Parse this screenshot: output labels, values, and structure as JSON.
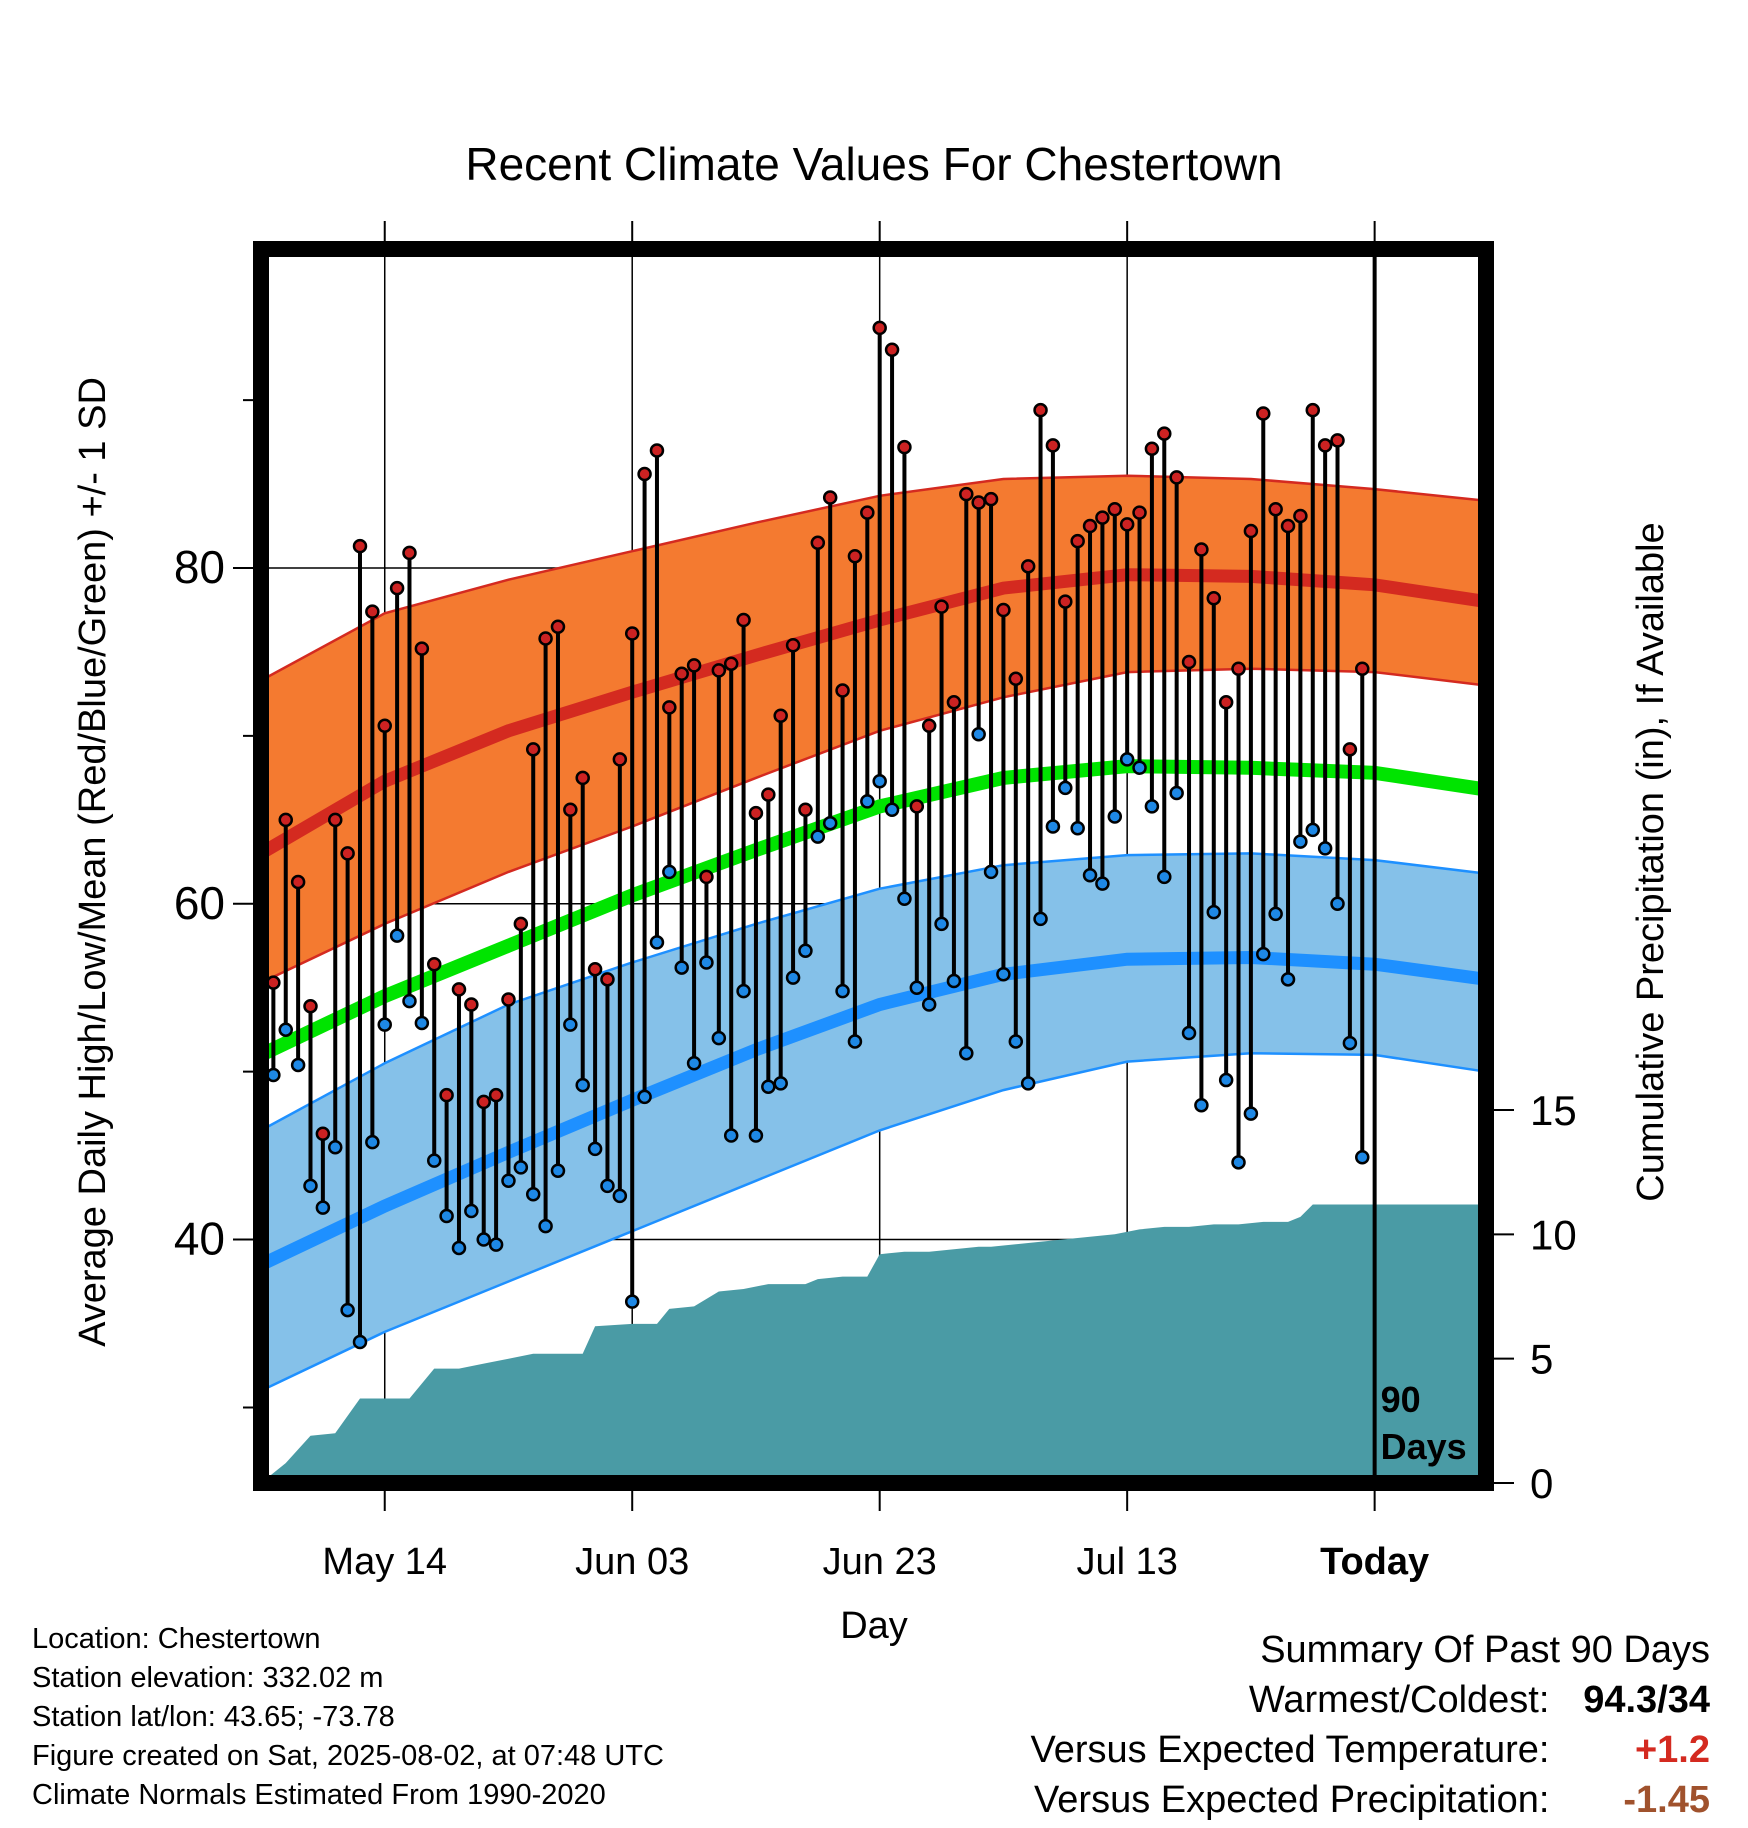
{
  "chart_data": {
    "type": "line",
    "title": "Recent Climate Values For Chestertown",
    "xlabel": "Day",
    "ylabel_left": "Average Daily High/Low/Mean (Red/Blue/Green) +/- 1 SD",
    "ylabel_right": "Cumulative Precipitation (in), If Available",
    "xlim_days": [
      0,
      99
    ],
    "today_day": 90,
    "today_annotation": [
      "90",
      "Days"
    ],
    "x_ticks": [
      {
        "day": 10,
        "label": "May 14"
      },
      {
        "day": 30,
        "label": "Jun 03"
      },
      {
        "day": 50,
        "label": "Jun 23"
      },
      {
        "day": 70,
        "label": "Jul 13"
      },
      {
        "day": 90,
        "label": "Today"
      }
    ],
    "y_left_ticks": [
      40,
      60,
      80
    ],
    "y_left_range": [
      25.5,
      99
    ],
    "y_right_ticks": [
      0,
      5,
      10,
      15
    ],
    "y_right_range": [
      0,
      15
    ],
    "grid": true,
    "normals_days": [
      0,
      10,
      20,
      30,
      40,
      50,
      60,
      70,
      80,
      90,
      99
    ],
    "normal_high": [
      63,
      67.3,
      70.3,
      72.6,
      74.8,
      76.9,
      78.8,
      79.6,
      79.5,
      79,
      78
    ],
    "normal_high_upper": [
      73.3,
      77.3,
      79.3,
      81,
      82.7,
      84.3,
      85.3,
      85.5,
      85.3,
      84.7,
      84
    ],
    "normal_high_lower": [
      55.3,
      58.8,
      61.9,
      64.6,
      67.5,
      70.3,
      72.3,
      73.8,
      74,
      73.8,
      73
    ],
    "normal_mean": [
      51,
      54.5,
      57.5,
      60.5,
      63.2,
      65.8,
      67.5,
      68.2,
      68.1,
      67.8,
      66.8
    ],
    "normal_low": [
      38.5,
      42,
      45.2,
      48.3,
      51.3,
      54,
      55.8,
      56.7,
      56.8,
      56.4,
      55.5
    ],
    "normal_low_upper": [
      46.5,
      50.5,
      54,
      56.5,
      58.8,
      60.9,
      62.3,
      62.9,
      63,
      62.6,
      61.8
    ],
    "normal_low_lower": [
      31,
      34.5,
      37.5,
      40.5,
      43.5,
      46.5,
      48.9,
      50.6,
      51.1,
      51,
      50
    ],
    "daily": {
      "days": [
        0,
        1,
        2,
        3,
        4,
        5,
        6,
        7,
        8,
        9,
        10,
        11,
        12,
        13,
        14,
        15,
        16,
        17,
        18,
        19,
        20,
        21,
        22,
        23,
        24,
        25,
        26,
        27,
        28,
        29,
        30,
        31,
        32,
        33,
        34,
        35,
        36,
        37,
        38,
        39,
        40,
        41,
        42,
        43,
        44,
        45,
        46,
        47,
        48,
        49,
        50,
        51,
        52,
        53,
        54,
        55,
        56,
        57,
        58,
        59,
        60,
        61,
        62,
        63,
        64,
        65,
        66,
        67,
        68,
        69,
        70,
        71,
        72,
        73,
        74,
        75,
        76,
        77,
        78,
        79,
        80,
        81,
        82,
        83,
        84,
        85,
        86,
        87,
        88,
        89
      ],
      "high": [
        54.3,
        55.3,
        65,
        61.3,
        53.9,
        46.3,
        65,
        63,
        81.3,
        77.4,
        70.6,
        78.8,
        80.9,
        75.2,
        56.4,
        48.6,
        54.9,
        54,
        48.2,
        48.6,
        54.3,
        58.8,
        69.2,
        75.8,
        76.5,
        65.6,
        67.5,
        56.1,
        55.5,
        68.6,
        76.1,
        85.6,
        87,
        71.7,
        73.7,
        74.2,
        61.6,
        73.9,
        74.3,
        76.9,
        65.4,
        66.5,
        71.2,
        75.4,
        65.6,
        81.5,
        84.2,
        72.7,
        80.7,
        83.3,
        94.3,
        93,
        87.2,
        65.8,
        70.6,
        77.7,
        72,
        84.4,
        83.9,
        84.1,
        77.5,
        73.4,
        80.1,
        89.4,
        87.3,
        78,
        81.6,
        82.5,
        83,
        83.5,
        82.6,
        83.3,
        87.1,
        88,
        85.4,
        74.4,
        81.1,
        78.2,
        72,
        74,
        82.2,
        89.2,
        83.5,
        82.5,
        83.1,
        89.4,
        87.3,
        87.6,
        69.2,
        74
      ],
      "low": [
        48.4,
        49.8,
        52.5,
        50.4,
        43.2,
        41.9,
        45.5,
        35.8,
        33.9,
        45.8,
        52.8,
        58.1,
        54.2,
        52.9,
        44.7,
        41.4,
        39.5,
        41.7,
        40,
        39.7,
        43.5,
        44.3,
        42.7,
        40.8,
        44.1,
        52.8,
        49.2,
        45.4,
        43.2,
        42.6,
        36.3,
        48.5,
        57.7,
        61.9,
        56.2,
        50.5,
        56.5,
        52,
        46.2,
        54.8,
        46.2,
        49.1,
        49.3,
        55.6,
        57.2,
        64,
        64.8,
        54.8,
        51.8,
        66.1,
        67.3,
        65.6,
        60.3,
        55,
        54,
        58.8,
        55.4,
        51.1,
        70.1,
        61.9,
        55.8,
        51.8,
        49.3,
        59.1,
        64.6,
        66.9,
        64.5,
        61.7,
        61.2,
        65.2,
        68.6,
        68.1,
        65.8,
        61.6,
        66.6,
        52.3,
        48,
        59.5,
        49.5,
        44.6,
        47.5,
        57,
        59.4,
        55.5,
        63.7,
        64.4,
        63.3,
        60,
        51.7,
        44.9
      ]
    },
    "precip_days": [
      0,
      2,
      4,
      6,
      8,
      12,
      13,
      14,
      16,
      18,
      20,
      22,
      25,
      26,
      27,
      30,
      32,
      33,
      35,
      37,
      39,
      41,
      43,
      44,
      45,
      47,
      48,
      49,
      50,
      52,
      54,
      56,
      58,
      59,
      61,
      63,
      65,
      67,
      69,
      71,
      73,
      75,
      77,
      79,
      81,
      83,
      84,
      85,
      99
    ],
    "precip_cum": [
      0,
      0.8,
      1.9,
      2,
      3.4,
      3.4,
      4,
      4.6,
      4.6,
      4.8,
      5,
      5.2,
      5.2,
      5.2,
      6.3,
      6.4,
      6.4,
      7,
      7.1,
      7.7,
      7.8,
      8,
      8,
      8,
      8.2,
      8.3,
      8.3,
      8.3,
      9.2,
      9.3,
      9.3,
      9.4,
      9.5,
      9.5,
      9.6,
      9.7,
      9.8,
      9.9,
      10.0,
      10.2,
      10.3,
      10.3,
      10.4,
      10.4,
      10.5,
      10.5,
      10.7,
      11.2,
      11.2
    ]
  },
  "footer": {
    "location": "Location: Chestertown",
    "elevation": "Station elevation: 332.02 m",
    "latlon": "Station lat/lon: 43.65; -73.78",
    "created": "Figure created on Sat, 2025-08-02, at 07:48 UTC",
    "normals": "Climate Normals Estimated From 1990-2020"
  },
  "summary": {
    "title": "Summary Of Past 90 Days",
    "warm_cold_label": "Warmest/Coldest:",
    "warm_cold_value": "94.3/34",
    "temp_label": "Versus Expected Temperature:",
    "temp_value": "+1.2",
    "precip_label": "Versus Expected Precipitation:",
    "precip_value": "-1.45"
  },
  "colors": {
    "high_band": "#f47a30",
    "high_line": "#d42a20",
    "low_band": "#85c1e9",
    "low_line": "#1e90ff",
    "mean_line": "#00e400",
    "precip_fill": "#4a9ba5",
    "high_dot": "#cc2222",
    "low_dot": "#1e88e5",
    "temp_anomaly": "#d42a20",
    "precip_anomaly": "#a0522d"
  }
}
